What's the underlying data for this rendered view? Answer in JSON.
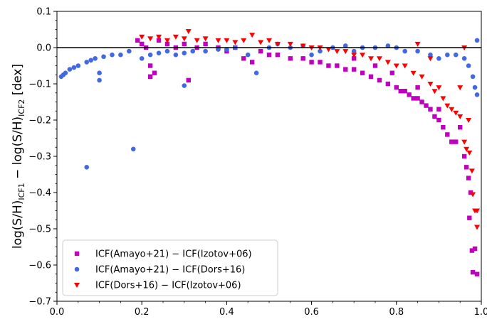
{
  "chart_data": {
    "type": "scatter",
    "title": "",
    "xlabel": "",
    "ylabel": {
      "prefix": "log(S/H)",
      "sub1": "ICF1",
      "minus": " − log(S/H)",
      "sub2": "ICF2",
      "suffix": " [dex]"
    },
    "xlim": [
      0.0,
      1.0
    ],
    "ylim": [
      -0.7,
      0.1
    ],
    "x_ticks": [
      0.0,
      0.2,
      0.4,
      0.6,
      0.8,
      1.0
    ],
    "x_tick_labels": [
      "0.0",
      "0.2",
      "0.4",
      "0.6",
      "0.8",
      "1.0"
    ],
    "y_ticks": [
      0.1,
      0.0,
      -0.1,
      -0.2,
      -0.3,
      -0.4,
      -0.5,
      -0.6,
      -0.7
    ],
    "y_tick_labels": [
      "0.1",
      "0.0",
      "−0.1",
      "−0.2",
      "−0.3",
      "−0.4",
      "−0.5",
      "−0.6",
      "−0.7"
    ],
    "reference_line": 0.0,
    "legend_position": "lower-left",
    "colors": {
      "magenta": "#bf00bf",
      "blue": "#4169e1",
      "red": "#ff0000"
    },
    "series": [
      {
        "name": "ICF(Amayo+21) − ICF(Izotov+06)",
        "marker": "square",
        "color": "#bf00bf",
        "points": [
          [
            0.19,
            0.02
          ],
          [
            0.2,
            0.01
          ],
          [
            0.21,
            0.0
          ],
          [
            0.22,
            -0.05
          ],
          [
            0.23,
            -0.07
          ],
          [
            0.22,
            -0.08
          ],
          [
            0.24,
            0.02
          ],
          [
            0.26,
            0.01
          ],
          [
            0.28,
            0.0
          ],
          [
            0.3,
            0.01
          ],
          [
            0.31,
            -0.09
          ],
          [
            0.33,
            0.0
          ],
          [
            0.35,
            0.01
          ],
          [
            0.38,
            0.0
          ],
          [
            0.4,
            -0.01
          ],
          [
            0.42,
            0.0
          ],
          [
            0.44,
            -0.03
          ],
          [
            0.46,
            -0.04
          ],
          [
            0.48,
            -0.01
          ],
          [
            0.5,
            -0.02
          ],
          [
            0.52,
            -0.02
          ],
          [
            0.55,
            -0.03
          ],
          [
            0.58,
            -0.03
          ],
          [
            0.6,
            -0.04
          ],
          [
            0.62,
            -0.04
          ],
          [
            0.64,
            -0.05
          ],
          [
            0.66,
            -0.05
          ],
          [
            0.68,
            -0.06
          ],
          [
            0.7,
            -0.06
          ],
          [
            0.72,
            -0.07
          ],
          [
            0.74,
            -0.08
          ],
          [
            0.76,
            -0.09
          ],
          [
            0.78,
            -0.1
          ],
          [
            0.8,
            -0.11
          ],
          [
            0.81,
            -0.12
          ],
          [
            0.82,
            -0.12
          ],
          [
            0.83,
            -0.13
          ],
          [
            0.84,
            -0.14
          ],
          [
            0.85,
            -0.14
          ],
          [
            0.86,
            -0.15
          ],
          [
            0.87,
            -0.16
          ],
          [
            0.88,
            -0.17
          ],
          [
            0.89,
            -0.19
          ],
          [
            0.9,
            -0.2
          ],
          [
            0.91,
            -0.22
          ],
          [
            0.92,
            -0.24
          ],
          [
            0.93,
            -0.26
          ],
          [
            0.95,
            -0.22
          ],
          [
            0.96,
            -0.3
          ],
          [
            0.965,
            -0.33
          ],
          [
            0.97,
            -0.36
          ],
          [
            0.975,
            -0.4
          ],
          [
            0.972,
            -0.47
          ],
          [
            0.978,
            -0.56
          ],
          [
            0.985,
            -0.555
          ],
          [
            0.98,
            -0.62
          ],
          [
            0.99,
            -0.625
          ],
          [
            0.7,
            -0.03
          ],
          [
            0.75,
            -0.05
          ],
          [
            0.79,
            -0.07
          ],
          [
            0.85,
            -0.11
          ],
          [
            0.9,
            -0.17
          ],
          [
            0.94,
            -0.26
          ]
        ]
      },
      {
        "name": "ICF(Amayo+21) − ICF(Dors+16)",
        "marker": "circle",
        "color": "#4169e1",
        "points": [
          [
            0.01,
            -0.08
          ],
          [
            0.015,
            -0.075
          ],
          [
            0.02,
            -0.07
          ],
          [
            0.03,
            -0.06
          ],
          [
            0.04,
            -0.055
          ],
          [
            0.05,
            -0.05
          ],
          [
            0.07,
            -0.04
          ],
          [
            0.08,
            -0.035
          ],
          [
            0.09,
            -0.03
          ],
          [
            0.1,
            -0.07
          ],
          [
            0.1,
            -0.09
          ],
          [
            0.11,
            -0.025
          ],
          [
            0.13,
            -0.02
          ],
          [
            0.15,
            -0.02
          ],
          [
            0.17,
            -0.01
          ],
          [
            0.18,
            -0.28
          ],
          [
            0.07,
            -0.33
          ],
          [
            0.2,
            -0.03
          ],
          [
            0.22,
            -0.02
          ],
          [
            0.24,
            -0.015
          ],
          [
            0.26,
            -0.01
          ],
          [
            0.28,
            -0.02
          ],
          [
            0.3,
            -0.105
          ],
          [
            0.3,
            -0.015
          ],
          [
            0.32,
            -0.01
          ],
          [
            0.35,
            -0.01
          ],
          [
            0.38,
            -0.005
          ],
          [
            0.4,
            -0.005
          ],
          [
            0.42,
            0.0
          ],
          [
            0.45,
            -0.02
          ],
          [
            0.47,
            -0.07
          ],
          [
            0.5,
            0.0
          ],
          [
            0.52,
            0.01
          ],
          [
            0.55,
            0.0
          ],
          [
            0.58,
            0.005
          ],
          [
            0.6,
            -0.02
          ],
          [
            0.62,
            -0.01
          ],
          [
            0.65,
            0.0
          ],
          [
            0.68,
            0.005
          ],
          [
            0.7,
            -0.01
          ],
          [
            0.72,
            0.0
          ],
          [
            0.75,
            0.0
          ],
          [
            0.78,
            0.005
          ],
          [
            0.8,
            0.0
          ],
          [
            0.82,
            -0.01
          ],
          [
            0.85,
            -0.01
          ],
          [
            0.88,
            -0.02
          ],
          [
            0.9,
            -0.03
          ],
          [
            0.92,
            -0.02
          ],
          [
            0.94,
            -0.02
          ],
          [
            0.96,
            -0.03
          ],
          [
            0.97,
            -0.05
          ],
          [
            0.98,
            -0.08
          ],
          [
            0.985,
            -0.11
          ],
          [
            0.99,
            -0.13
          ],
          [
            0.99,
            0.02
          ]
        ]
      },
      {
        "name": "ICF(Dors+16) − ICF(Izotov+06)",
        "marker": "triangle-down",
        "color": "#ff0000",
        "points": [
          [
            0.2,
            0.03
          ],
          [
            0.22,
            0.025
          ],
          [
            0.24,
            0.03
          ],
          [
            0.26,
            0.02
          ],
          [
            0.28,
            0.03
          ],
          [
            0.3,
            0.025
          ],
          [
            0.31,
            0.045
          ],
          [
            0.33,
            0.02
          ],
          [
            0.35,
            0.025
          ],
          [
            0.38,
            0.02
          ],
          [
            0.4,
            0.02
          ],
          [
            0.42,
            0.015
          ],
          [
            0.44,
            0.02
          ],
          [
            0.46,
            0.035
          ],
          [
            0.48,
            0.015
          ],
          [
            0.5,
            0.02
          ],
          [
            0.52,
            0.01
          ],
          [
            0.55,
            0.01
          ],
          [
            0.58,
            0.005
          ],
          [
            0.6,
            0.0
          ],
          [
            0.62,
            0.0
          ],
          [
            0.64,
            -0.005
          ],
          [
            0.66,
            -0.01
          ],
          [
            0.68,
            -0.01
          ],
          [
            0.7,
            -0.02
          ],
          [
            0.72,
            -0.02
          ],
          [
            0.74,
            -0.03
          ],
          [
            0.76,
            -0.03
          ],
          [
            0.78,
            -0.04
          ],
          [
            0.8,
            -0.05
          ],
          [
            0.82,
            -0.05
          ],
          [
            0.84,
            -0.07
          ],
          [
            0.86,
            -0.08
          ],
          [
            0.88,
            -0.1
          ],
          [
            0.89,
            -0.12
          ],
          [
            0.9,
            -0.11
          ],
          [
            0.91,
            -0.14
          ],
          [
            0.92,
            -0.16
          ],
          [
            0.93,
            -0.17
          ],
          [
            0.94,
            -0.18
          ],
          [
            0.95,
            -0.19
          ],
          [
            0.96,
            -0.26
          ],
          [
            0.965,
            -0.28
          ],
          [
            0.97,
            -0.2
          ],
          [
            0.972,
            -0.29
          ],
          [
            0.978,
            -0.34
          ],
          [
            0.98,
            -0.405
          ],
          [
            0.985,
            -0.45
          ],
          [
            0.99,
            -0.45
          ],
          [
            0.99,
            -0.495
          ],
          [
            0.96,
            0.0
          ],
          [
            0.95,
            -0.11
          ],
          [
            0.85,
            0.01
          ],
          [
            0.88,
            -0.03
          ]
        ]
      }
    ]
  }
}
